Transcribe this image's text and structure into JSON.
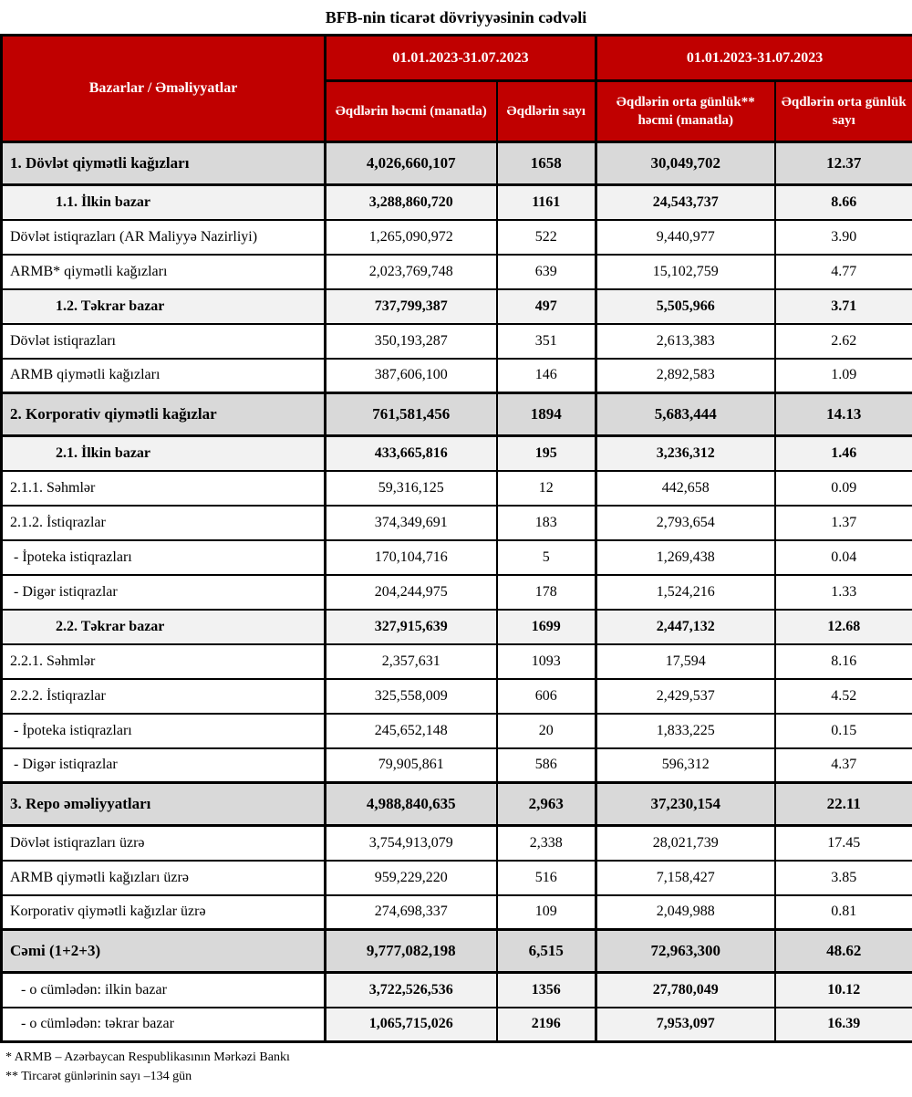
{
  "title": "BFB-nin ticarət dövriyyəsinin cədvəli",
  "colors": {
    "header_red": "#C00000",
    "section_row_bg": "#D9D9D9",
    "subsection_row_bg": "#F2F2F2",
    "border": "#000000"
  },
  "table": {
    "markets_header": "Bazarlar / Əməliyyatlar",
    "period_1": "01.01.2023-31.07.2023",
    "period_2": "01.01.2023-31.07.2023",
    "sub_headers": [
      "Əqdlərin həcmi (manatla)",
      "Əqdlərin sayı",
      "Əqdlərin orta günlük** həcmi (manatla)",
      "Əqdlərin orta günlük sayı"
    ],
    "rows": [
      {
        "style": "section",
        "label": "1. Dövlət qiymətli kağızları",
        "values": [
          "4,026,660,107",
          "1658",
          "30,049,702",
          "12.37"
        ]
      },
      {
        "style": "subsection",
        "label": "1.1. İlkin bazar",
        "values": [
          "3,288,860,720",
          "1161",
          "24,543,737",
          "8.66"
        ]
      },
      {
        "style": "normal",
        "label": "Dövlət istiqrazları (AR Maliyyə Nazirliyi)",
        "values": [
          "1,265,090,972",
          "522",
          "9,440,977",
          "3.90"
        ]
      },
      {
        "style": "normal",
        "label": "ARMB* qiymətli kağızları",
        "values": [
          "2,023,769,748",
          "639",
          "15,102,759",
          "4.77"
        ]
      },
      {
        "style": "subsection",
        "label": "1.2. Təkrar bazar",
        "values": [
          "737,799,387",
          "497",
          "5,505,966",
          "3.71"
        ]
      },
      {
        "style": "normal",
        "label": "Dövlət istiqrazları",
        "values": [
          "350,193,287",
          "351",
          "2,613,383",
          "2.62"
        ]
      },
      {
        "style": "normal",
        "label": "ARMB qiymətli kağızları",
        "values": [
          "387,606,100",
          "146",
          "2,892,583",
          "1.09"
        ]
      },
      {
        "style": "section",
        "label": "2. Korporativ qiymətli kağızlar",
        "values": [
          "761,581,456",
          "1894",
          "5,683,444",
          "14.13"
        ]
      },
      {
        "style": "subsection",
        "label": "2.1. İlkin bazar",
        "values": [
          "433,665,816",
          "195",
          "3,236,312",
          "1.46"
        ]
      },
      {
        "style": "normal",
        "label": "2.1.1. Səhmlər",
        "values": [
          "59,316,125",
          "12",
          "442,658",
          "0.09"
        ]
      },
      {
        "style": "normal",
        "label": "2.1.2. İstiqrazlar",
        "values": [
          "374,349,691",
          "183",
          "2,793,654",
          "1.37"
        ]
      },
      {
        "style": "dash",
        "label": "- İpoteka istiqrazları",
        "values": [
          "170,104,716",
          "5",
          "1,269,438",
          "0.04"
        ]
      },
      {
        "style": "dash",
        "label": "- Digər istiqrazlar",
        "values": [
          "204,244,975",
          "178",
          "1,524,216",
          "1.33"
        ]
      },
      {
        "style": "subsection",
        "label": "2.2. Təkrar bazar",
        "values": [
          "327,915,639",
          "1699",
          "2,447,132",
          "12.68"
        ]
      },
      {
        "style": "normal",
        "label": "2.2.1. Səhmlər",
        "values": [
          "2,357,631",
          "1093",
          "17,594",
          "8.16"
        ]
      },
      {
        "style": "normal",
        "label": "2.2.2. İstiqrazlar",
        "values": [
          "325,558,009",
          "606",
          "2,429,537",
          "4.52"
        ]
      },
      {
        "style": "dash",
        "label": "- İpoteka istiqrazları",
        "values": [
          "245,652,148",
          "20",
          "1,833,225",
          "0.15"
        ]
      },
      {
        "style": "dash",
        "label": "- Digər istiqrazlar",
        "values": [
          "79,905,861",
          "586",
          "596,312",
          "4.37"
        ]
      },
      {
        "style": "section",
        "label": "3. Repo əməliyyatları",
        "values": [
          "4,988,840,635",
          "2,963",
          "37,230,154",
          "22.11"
        ]
      },
      {
        "style": "normal",
        "label": "Dövlət istiqrazları üzrə",
        "values": [
          "3,754,913,079",
          "2,338",
          "28,021,739",
          "17.45"
        ]
      },
      {
        "style": "normal",
        "label": "ARMB qiymətli kağızları üzrə",
        "values": [
          "959,229,220",
          "516",
          "7,158,427",
          "3.85"
        ]
      },
      {
        "style": "normal",
        "label": "Korporativ qiymətli kağızlar üzrə",
        "values": [
          "274,698,337",
          "109",
          "2,049,988",
          "0.81"
        ]
      },
      {
        "style": "section",
        "label": "Cəmi (1+2+3)",
        "values": [
          "9,777,082,198",
          "6,515",
          "72,963,300",
          "48.62"
        ]
      },
      {
        "style": "total_sub",
        "label": "- o cümlədən: ilkin bazar",
        "values": [
          "3,722,526,536",
          "1356",
          "27,780,049",
          "10.12"
        ]
      },
      {
        "style": "total_sub",
        "label": "- o cümlədən: təkrar bazar",
        "values": [
          "1,065,715,026",
          "2196",
          "7,953,097",
          "16.39"
        ]
      }
    ]
  },
  "footnotes": [
    "* ARMB – Azərbaycan Respublikasının Mərkəzi Bankı",
    "** Tircarət günlərinin sayı –134 gün"
  ]
}
